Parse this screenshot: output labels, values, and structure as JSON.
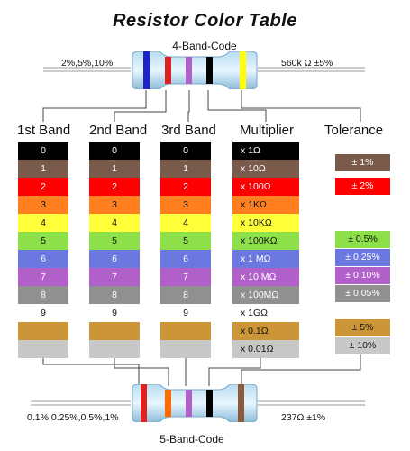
{
  "title": "Resistor Color Table",
  "four_band": {
    "label": "4-Band-Code",
    "tolerances": "2%,5%,10%",
    "example": "560k Ω  ±5%"
  },
  "five_band": {
    "label": "5-Band-Code",
    "tolerances": "0.1%,0.25%,0.5%,1%",
    "example": "237Ω  ±1%"
  },
  "headers": {
    "first": "1st Band",
    "second": "2nd Band",
    "third": "3rd Band",
    "multiplier": "Multiplier",
    "tolerance": "Tolerance"
  },
  "colors": [
    "#000000",
    "#7a5a4a",
    "#ff0000",
    "#ff7f1e",
    "#ffff3a",
    "#8ee04a",
    "#6a78e0",
    "#b060c8",
    "#909090",
    "#ffffff",
    "#cc9638",
    "#c8c8c8"
  ],
  "digits": [
    "0",
    "1",
    "2",
    "3",
    "4",
    "5",
    "6",
    "7",
    "8",
    "9",
    "",
    ""
  ],
  "multipliers": [
    "x 1Ω",
    "x 10Ω",
    "x 100Ω",
    "x 1KΩ",
    "x 10KΩ",
    "x 100KΩ",
    "x 1 MΩ",
    "x 10 MΩ",
    "x 100MΩ",
    "x 1GΩ",
    "x 0.1Ω",
    "x 0.01Ω"
  ],
  "tolerances": [
    {
      "label": "± 1%",
      "color": "#7a5a4a"
    },
    {
      "label": "± 2%",
      "color": "#ff0000"
    },
    {
      "label": "± 0.5%",
      "color": "#8ee04a"
    },
    {
      "label": "± 0.25%",
      "color": "#6a78e0"
    },
    {
      "label": "± 0.10%",
      "color": "#b060c8"
    },
    {
      "label": "± 0.05%",
      "color": "#909090"
    },
    {
      "label": "± 5%",
      "color": "#cc9638"
    },
    {
      "label": "± 10%",
      "color": "#c8c8c8"
    }
  ]
}
